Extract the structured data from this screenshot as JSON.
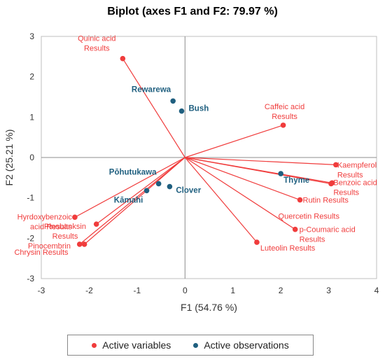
{
  "chart_data": {
    "type": "scatter",
    "title": "Biplot (axes F1 and F2: 79.97 %)",
    "xlabel": "F1 (54.76 %)",
    "ylabel": "F2 (25.21 %)",
    "xlim": [
      -3,
      4
    ],
    "ylim": [
      -3,
      3
    ],
    "xticks": [
      "-3",
      "-2",
      "-1",
      "0",
      "1",
      "2",
      "3",
      "4"
    ],
    "yticks": [
      "-3",
      "-2",
      "-1",
      "0",
      "1",
      "2",
      "3"
    ],
    "grid": false,
    "legend_position": "bottom",
    "legend": [
      {
        "label": "Active variables",
        "color": "#f03c3c"
      },
      {
        "label": "Active observations",
        "color": "#1f5f7f"
      }
    ],
    "variables": [
      {
        "lines": [
          "Quinic acid",
          "Results"
        ],
        "x": -1.3,
        "y": 2.45
      },
      {
        "lines": [
          "Caffeic acid",
          "Results"
        ],
        "x": 2.05,
        "y": 0.8
      },
      {
        "lines": [
          "Kaempferol",
          "Results"
        ],
        "x": 3.15,
        "y": -0.18
      },
      {
        "lines": [
          "Benzoic acid",
          "Results"
        ],
        "x": 3.07,
        "y": -0.63
      },
      {
        "lines": [
          "Quercetin Results"
        ],
        "x": 3.05,
        "y": -0.65
      },
      {
        "lines": [
          "Rutin Results"
        ],
        "x": 2.4,
        "y": -1.05
      },
      {
        "lines": [
          "p-Coumaric acid",
          "Results"
        ],
        "x": 2.3,
        "y": -1.78
      },
      {
        "lines": [
          "Luteolin Results"
        ],
        "x": 1.5,
        "y": -2.1
      },
      {
        "lines": [
          "Hyrdoxybenzoic",
          "acid Results"
        ],
        "x": -2.3,
        "y": -1.48
      },
      {
        "lines": [
          "Pinobanksin",
          "Results"
        ],
        "x": -1.85,
        "y": -1.65
      },
      {
        "lines": [
          "Pinocembrin"
        ],
        "x": -2.2,
        "y": -2.15
      },
      {
        "lines": [
          "Chrysin Results"
        ],
        "x": -2.1,
        "y": -2.15
      }
    ],
    "observations": [
      {
        "label": "Rewarewa",
        "x": -0.25,
        "y": 1.4
      },
      {
        "label": "Bush",
        "x": -0.07,
        "y": 1.15
      },
      {
        "label": "Thyme",
        "x": 2.0,
        "y": -0.4
      },
      {
        "label": "Pōhutukawa",
        "x": -0.55,
        "y": -0.65
      },
      {
        "label": "Kāmahi",
        "x": -0.8,
        "y": -0.82
      },
      {
        "label": "Clover",
        "x": -0.32,
        "y": -0.72
      }
    ]
  }
}
